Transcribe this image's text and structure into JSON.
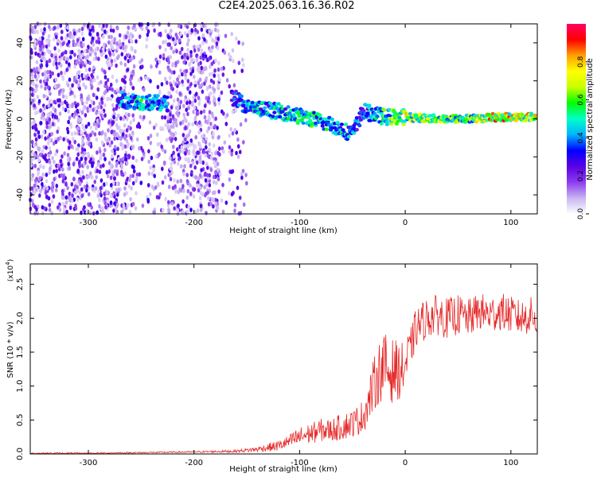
{
  "title": "C2E4.2025.063.16.36.R02",
  "chart_data": [
    {
      "type": "heatmap",
      "xlabel": "Height of straight line (km)",
      "ylabel": "Frequency (Hz)",
      "xlim": [
        -355,
        125
      ],
      "ylim": [
        -50,
        50
      ],
      "xticks": [
        -300,
        -200,
        -100,
        0,
        100
      ],
      "yticks": [
        -40,
        -20,
        0,
        20,
        40
      ],
      "colorbar": {
        "label": "Normalized spectral amplitude",
        "range": [
          0,
          1
        ],
        "ticks": [
          0.0,
          0.2,
          0.4,
          0.6,
          0.8
        ],
        "colors": [
          "#ffffff",
          "#c8b4f0",
          "#8c3cf0",
          "#5a00e6",
          "#0000ff",
          "#00b4ff",
          "#00ffc8",
          "#00ff00",
          "#c8ff00",
          "#ffff00",
          "#ffa000",
          "#ff0000",
          "#ff0064"
        ]
      },
      "ridge": {
        "description_points": [
          {
            "x": -270,
            "y": 10,
            "amp": 0.45
          },
          {
            "x": -250,
            "y": 9,
            "amp": 0.55
          },
          {
            "x": -230,
            "y": 8,
            "amp": 0.45
          },
          {
            "x": -160,
            "y": 11,
            "amp": 0.4
          },
          {
            "x": -150,
            "y": 6,
            "amp": 0.5
          },
          {
            "x": -120,
            "y": 4,
            "amp": 0.5
          },
          {
            "x": -90,
            "y": 0,
            "amp": 0.6
          },
          {
            "x": -70,
            "y": -3,
            "amp": 0.55
          },
          {
            "x": -50,
            "y": -8,
            "amp": 0.45
          },
          {
            "x": -40,
            "y": 4,
            "amp": 0.4
          },
          {
            "x": -20,
            "y": 1,
            "amp": 0.6
          },
          {
            "x": 0,
            "y": 1,
            "amp": 0.75
          },
          {
            "x": 30,
            "y": 0,
            "amp": 0.7
          },
          {
            "x": 60,
            "y": 0,
            "amp": 0.7
          },
          {
            "x": 90,
            "y": 1,
            "amp": 0.9
          },
          {
            "x": 120,
            "y": 1,
            "amp": 0.8
          }
        ]
      }
    },
    {
      "type": "line",
      "xlabel": "Height of straight line (km)",
      "ylabel": "SNR (10 * v/v)",
      "multiplier": "(x10",
      "multiplier_exp": "4",
      "multiplier_close": ")",
      "xlim": [
        -355,
        125
      ],
      "ylim": [
        0,
        2.8
      ],
      "xticks": [
        -300,
        -200,
        -100,
        0,
        100
      ],
      "yticks": [
        0.0,
        0.5,
        1.0,
        1.5,
        2.0,
        2.5
      ],
      "ytick_labels": [
        "0.0",
        "0.5",
        "1.0",
        "1.5",
        "2.0",
        "2.5"
      ],
      "color": "#e62828",
      "series": [
        {
          "x": [
            -355,
            -300,
            -250,
            -200,
            -160,
            -140,
            -120,
            -110,
            -100,
            -90,
            -80,
            -70,
            -60,
            -50,
            -40,
            -35,
            -30,
            -25,
            -20,
            -15,
            -10,
            -5,
            0,
            5,
            10,
            20,
            30,
            40,
            50,
            60,
            70,
            80,
            90,
            100,
            110,
            120,
            125
          ],
          "y": [
            0.01,
            0.01,
            0.02,
            0.03,
            0.04,
            0.07,
            0.12,
            0.18,
            0.25,
            0.3,
            0.35,
            0.35,
            0.4,
            0.45,
            0.55,
            0.75,
            1.0,
            1.2,
            1.3,
            1.2,
            1.25,
            1.2,
            1.3,
            1.55,
            1.85,
            2.0,
            2.05,
            2.0,
            2.05,
            2.0,
            2.1,
            2.05,
            2.1,
            2.05,
            2.0,
            2.05,
            1.95
          ],
          "noise": [
            0.01,
            0.01,
            0.01,
            0.01,
            0.02,
            0.04,
            0.08,
            0.1,
            0.15,
            0.15,
            0.17,
            0.17,
            0.2,
            0.2,
            0.25,
            0.3,
            0.4,
            0.45,
            0.5,
            0.5,
            0.45,
            0.4,
            0.4,
            0.3,
            0.3,
            0.3,
            0.3,
            0.3,
            0.3,
            0.28,
            0.28,
            0.28,
            0.28,
            0.27,
            0.27,
            0.27,
            0.25
          ]
        }
      ]
    }
  ]
}
